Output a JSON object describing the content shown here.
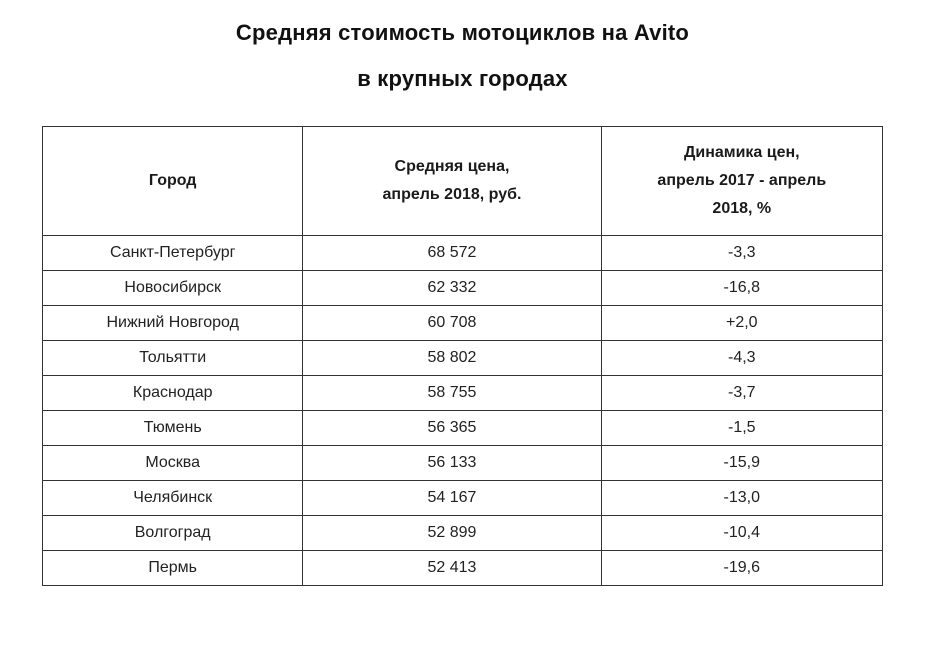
{
  "title": {
    "line1": "Средняя стоимость мотоциклов на Avito",
    "line2": "в крупных городах"
  },
  "table": {
    "headers": [
      {
        "lines": [
          "Город"
        ]
      },
      {
        "lines": [
          "Средняя цена,",
          "апрель 2018, руб."
        ]
      },
      {
        "lines": [
          "Динамика цен,",
          "апрель 2017 - апрель",
          "2018, %"
        ]
      }
    ],
    "rows": [
      {
        "city": "Санкт-Петербург",
        "price": "68 572",
        "dynamics": "-3,3"
      },
      {
        "city": "Новосибирск",
        "price": "62 332",
        "dynamics": "-16,8"
      },
      {
        "city": "Нижний Новгород",
        "price": "60 708",
        "dynamics": "+2,0"
      },
      {
        "city": "Тольятти",
        "price": "58 802",
        "dynamics": "-4,3"
      },
      {
        "city": "Краснодар",
        "price": "58 755",
        "dynamics": "-3,7"
      },
      {
        "city": "Тюмень",
        "price": "56 365",
        "dynamics": "-1,5"
      },
      {
        "city": "Москва",
        "price": "56 133",
        "dynamics": "-15,9"
      },
      {
        "city": "Челябинск",
        "price": "54 167",
        "dynamics": "-13,0"
      },
      {
        "city": "Волгоград",
        "price": "52 899",
        "dynamics": "-10,4"
      },
      {
        "city": "Пермь",
        "price": "52 413",
        "dynamics": "-19,6"
      }
    ]
  },
  "chart_data": {
    "type": "table",
    "title": "Средняя стоимость мотоциклов на Avito в крупных городах",
    "columns": [
      "Город",
      "Средняя цена, апрель 2018, руб.",
      "Динамика цен, апрель 2017 - апрель 2018, %"
    ],
    "rows": [
      [
        "Санкт-Петербург",
        68572,
        -3.3
      ],
      [
        "Новосибирск",
        62332,
        -16.8
      ],
      [
        "Нижний Новгород",
        60708,
        2.0
      ],
      [
        "Тольятти",
        58802,
        -4.3
      ],
      [
        "Краснодар",
        58755,
        -3.7
      ],
      [
        "Тюмень",
        56365,
        -1.5
      ],
      [
        "Москва",
        56133,
        -15.9
      ],
      [
        "Челябинск",
        54167,
        -13.0
      ],
      [
        "Волгоград",
        52899,
        -10.4
      ],
      [
        "Пермь",
        52413,
        -19.6
      ]
    ]
  }
}
